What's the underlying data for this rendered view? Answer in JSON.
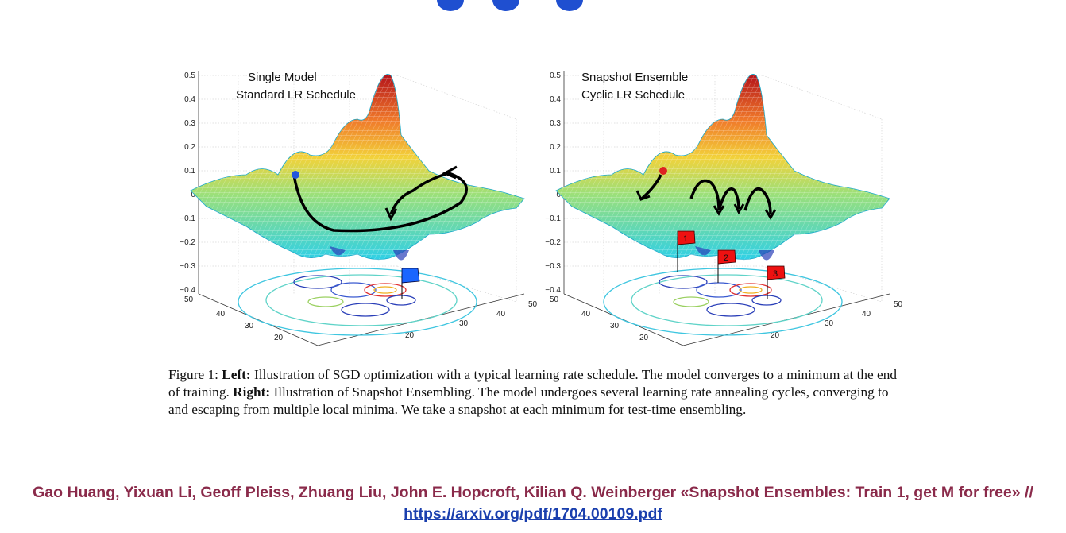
{
  "figure": {
    "left_panel": {
      "title_line1": "Single Model",
      "title_line2": "Standard LR Schedule",
      "z_ticks": [
        "0.5",
        "0.4",
        "0.3",
        "0.2",
        "0.1",
        "0",
        "−0.1",
        "−0.2",
        "−0.3",
        "−0.4"
      ],
      "x_ticks": [
        "50",
        "40",
        "30",
        "20"
      ],
      "y_ticks": [
        "20",
        "30",
        "40",
        "50"
      ],
      "marker_color": "#2255dd",
      "flag_color": "#1a66ff"
    },
    "right_panel": {
      "title_line1": "Snapshot Ensemble",
      "title_line2": "Cyclic LR Schedule",
      "z_ticks": [
        "0.5",
        "0.4",
        "0.3",
        "0.2",
        "0.1",
        "0",
        "−0.1",
        "−0.2",
        "−0.3",
        "−0.4"
      ],
      "x_ticks": [
        "50",
        "40",
        "30",
        "20"
      ],
      "y_ticks": [
        "20",
        "30",
        "40",
        "50"
      ],
      "marker_color": "#dd2222",
      "flag_color": "#ee1111",
      "flag_labels": [
        "1",
        "2",
        "3"
      ]
    }
  },
  "caption": {
    "prefix": "Figure 1: ",
    "left_label": "Left:",
    "text1": " Illustration of SGD optimization with a typical learning rate schedule. The model converges to a minimum at the end of training. ",
    "right_label": "Right:",
    "text2": " Illustration of Snapshot Ensembling. The model undergoes several learning rate annealing cycles, converging to and escaping from multiple local minima. We take a snapshot at each minimum for test-time ensembling."
  },
  "citation": {
    "authors_and_title": "Gao Huang, Yixuan Li, Geoff Pleiss, Zhuang Liu, John E. Hopcroft, Kilian Q. Weinberger «Snapshot Ensembles: Train 1, get M for free» // ",
    "link_text": "https://arxiv.org/pdf/1704.00109.pdf"
  }
}
